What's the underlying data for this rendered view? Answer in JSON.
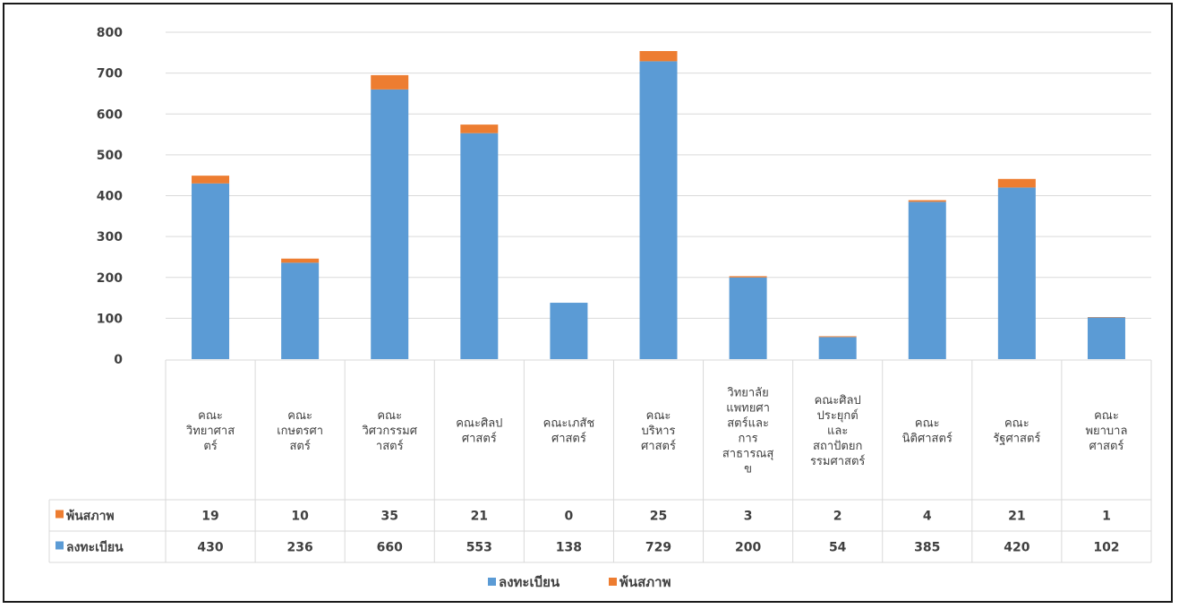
{
  "chart_data": {
    "type": "bar",
    "stacked": true,
    "categories": [
      "คณะวิทยาศาสตร์",
      "คณะเกษตรศาสตร์",
      "คณะวิศวกรรมศาสตร์",
      "คณะศิลปศาสตร์",
      "คณะเภสัชศาสตร์",
      "คณะบริหารศาสตร์",
      "วิทยาลัยแพทยศาสตร์และการสาธารณสุข",
      "คณะศิลปประยุกต์และสถาปัตยกรรมศาสตร์",
      "คณะนิติศาสตร์",
      "คณะรัฐศาสตร์",
      "คณะพยาบาลศาสตร์"
    ],
    "category_lines": [
      [
        "คณะ",
        "วิทยาศาส",
        "ตร์"
      ],
      [
        "คณะ",
        "เกษตรศา",
        "สตร์"
      ],
      [
        "คณะ",
        "วิศวกรรมศ",
        "าสตร์"
      ],
      [
        "คณะศิลป",
        "ศาสตร์"
      ],
      [
        "คณะเภสัช",
        "ศาสตร์"
      ],
      [
        "คณะ",
        "บริหาร",
        "ศาสตร์"
      ],
      [
        "วิทยาลัย",
        "แพทยศา",
        "สตร์และ",
        "การ",
        "สาธารณสุ",
        "ข"
      ],
      [
        "คณะศิลป",
        "ประยุกต์",
        "และ",
        "สถาปัตยก",
        "รรมศาสตร์"
      ],
      [
        "คณะ",
        "นิติศาสตร์"
      ],
      [
        "คณะ",
        "รัฐศาสตร์"
      ],
      [
        "คณะ",
        "พยาบาล",
        "ศาสตร์"
      ]
    ],
    "series": [
      {
        "name": "ลงทะเบียน",
        "color": "#5b9bd5",
        "values": [
          430,
          236,
          660,
          553,
          138,
          729,
          200,
          54,
          385,
          420,
          102
        ]
      },
      {
        "name": "พ้นสภาพ",
        "color": "#ed7d31",
        "values": [
          19,
          10,
          35,
          21,
          0,
          25,
          3,
          2,
          4,
          21,
          1
        ]
      }
    ],
    "table_rows_order": [
      "พ้นสภาพ",
      "ลงทะเบียน"
    ],
    "y_ticks": [
      "0",
      "100",
      "200",
      "300",
      "400",
      "500",
      "600",
      "700",
      "800"
    ],
    "ylim": [
      0,
      800
    ],
    "grid": true,
    "data_table": true,
    "legend_position": "bottom"
  }
}
